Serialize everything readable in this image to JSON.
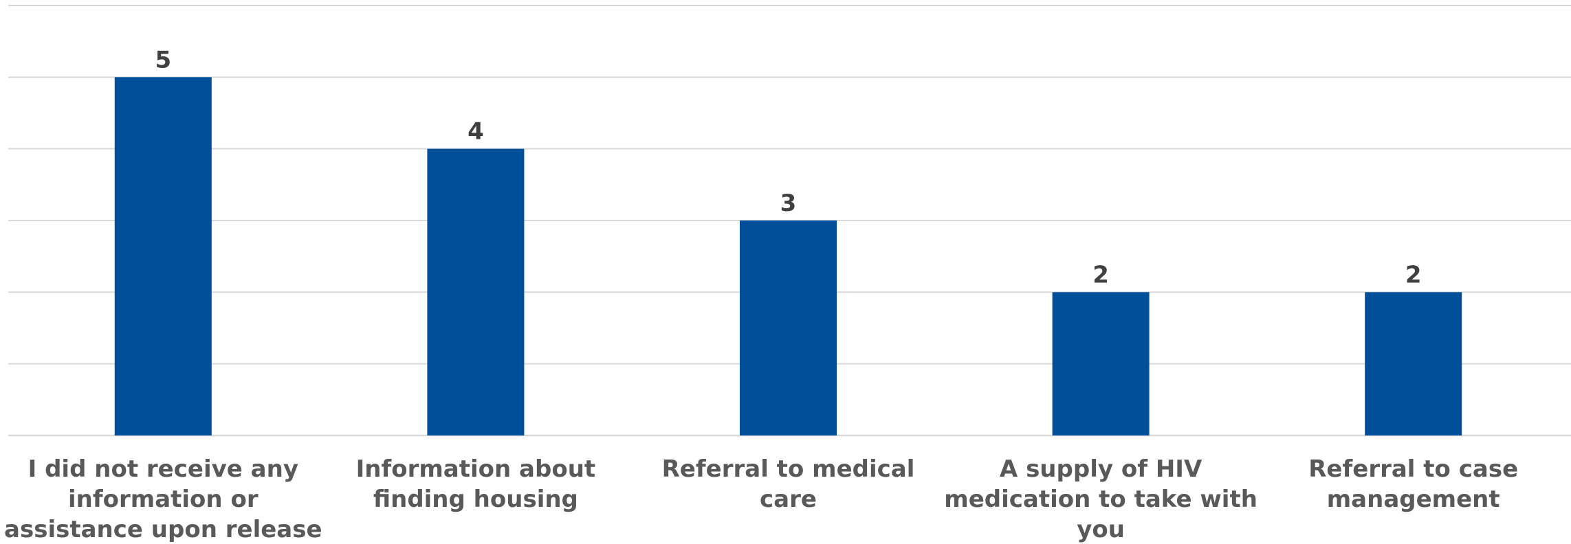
{
  "chart_data": {
    "type": "bar",
    "categories": [
      "I did not receive any information or assistance upon release",
      "Information about finding housing",
      "Referral to medical care",
      "A supply of HIV medication to take with you",
      "Referral to case management"
    ],
    "category_lines": [
      [
        "I did not receive any",
        "information or",
        "assistance upon release"
      ],
      [
        "Information about",
        "finding housing"
      ],
      [
        "Referral to medical",
        "care"
      ],
      [
        "A supply of HIV",
        "medication to take with",
        "you"
      ],
      [
        "Referral to case",
        "management"
      ]
    ],
    "values": [
      5,
      4,
      3,
      2,
      2
    ],
    "ylim": [
      0,
      6
    ],
    "grid": true,
    "colors": {
      "bar": "#004f98",
      "grid": "#d9d9d9",
      "data_label": "#404040",
      "category_label": "#595959"
    }
  }
}
